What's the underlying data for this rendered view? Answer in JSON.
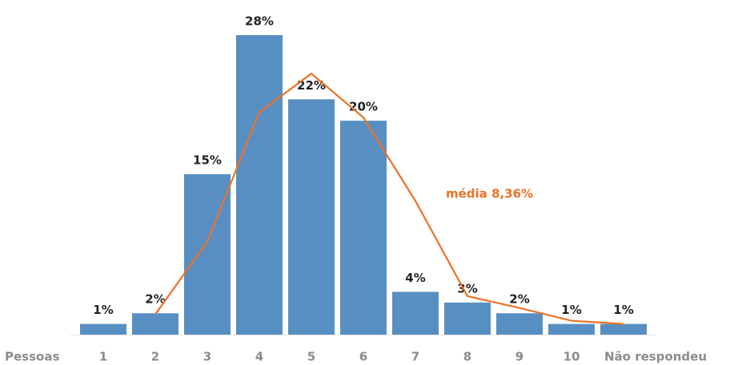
{
  "chart_data": {
    "type": "bar",
    "x_label": "Pessoas",
    "categories": [
      "1",
      "2",
      "3",
      "4",
      "5",
      "6",
      "7",
      "8",
      "9",
      "10",
      "Não respondeu"
    ],
    "series": [
      {
        "type": "bar",
        "color": "#588fc2",
        "values": [
          1,
          2,
          15,
          28,
          22,
          20,
          4,
          3,
          2,
          1,
          1
        ],
        "value_labels": [
          "1%",
          "2%",
          "15%",
          "28%",
          "22%",
          "20%",
          "4%",
          "3%",
          "2%",
          "1%",
          "1%"
        ]
      },
      {
        "type": "line",
        "name": "média 8,36%",
        "color": "#ed7125",
        "values": [
          null,
          1.9,
          8.7,
          20.8,
          24.4,
          20.3,
          12.5,
          3.6,
          2.5,
          1.3,
          1.0
        ]
      }
    ],
    "ylim": [
      0,
      28
    ]
  }
}
